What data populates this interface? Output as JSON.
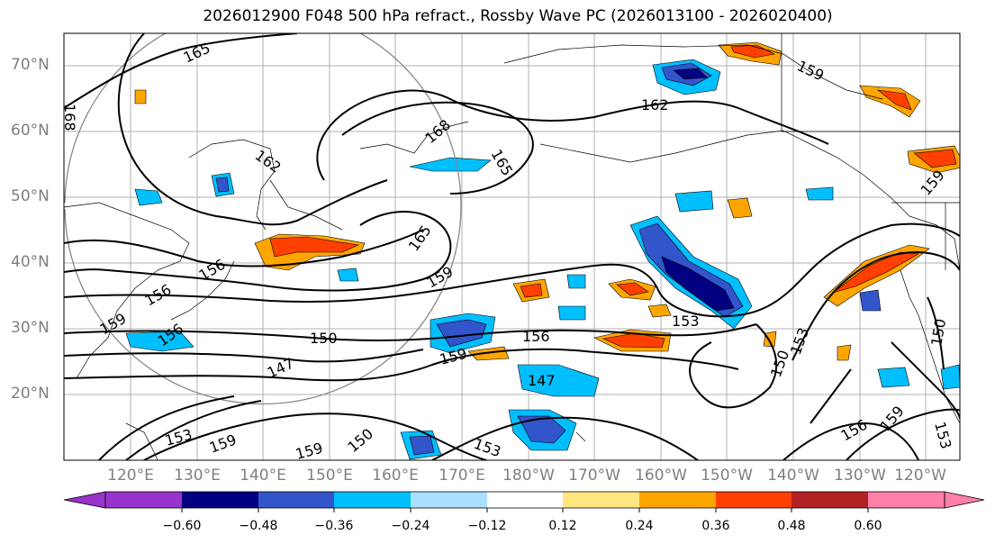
{
  "title": "2026012900 F048 500 hPa refract., Rossby Wave PC (2026013100 - 2026020400)",
  "lat_labels": [
    "70°N",
    "60°N",
    "50°N",
    "40°N",
    "30°N",
    "20°N"
  ],
  "lon_labels": [
    "120°E",
    "130°E",
    "140°E",
    "150°E",
    "160°E",
    "170°E",
    "180°W",
    "170°W",
    "160°W",
    "150°W",
    "140°W",
    "130°W",
    "120°W"
  ],
  "contour_labels": [
    "165",
    "168",
    "162",
    "168",
    "165",
    "162",
    "159",
    "159",
    "165",
    "159",
    "156",
    "159",
    "156",
    "150",
    "147",
    "156",
    "159",
    "147",
    "153",
    "150",
    "153",
    "150",
    "156",
    "159",
    "153",
    "159",
    "150",
    "153",
    "150",
    "153",
    "156",
    "159"
  ],
  "colorbar": {
    "ticks": [
      "−0.60",
      "−0.48",
      "−0.36",
      "−0.24",
      "−0.12",
      "0.12",
      "0.24",
      "0.36",
      "0.48",
      "0.60"
    ],
    "colors": [
      "#9933cc",
      "#000080",
      "#3355cc",
      "#00bfff",
      "#aadfff",
      "#ffffff",
      "#ffe680",
      "#ffa500",
      "#ff4000",
      "#b22222",
      "#ff80a8"
    ]
  },
  "chart_data": {
    "type": "heatmap",
    "title": "2026012900 F048 500 hPa refract., Rossby Wave PC (2026013100 - 2026020400)",
    "lat_range": [
      "10°N",
      "75°N"
    ],
    "lon_range": [
      "110°E",
      "115°W"
    ],
    "color_levels": [
      -0.6,
      -0.48,
      -0.36,
      -0.24,
      -0.12,
      0.12,
      0.24,
      0.36,
      0.48,
      0.6
    ],
    "contour_levels": [
      147,
      150,
      153,
      156,
      159,
      162,
      165,
      168
    ]
  }
}
